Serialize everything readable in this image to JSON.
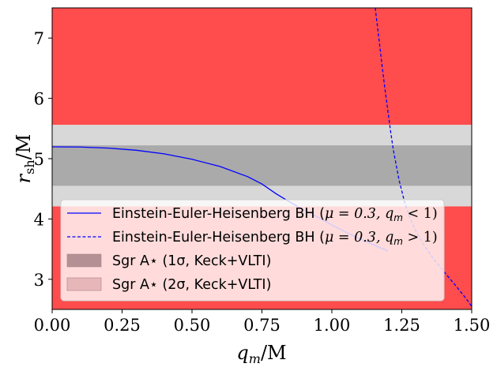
{
  "chart_data": {
    "type": "line",
    "xlabel": "q_m/M",
    "ylabel": "r_sh/M",
    "xlim": [
      0.0,
      1.5
    ],
    "ylim": [
      2.5,
      7.5
    ],
    "x_ticks": [
      "0.00",
      "0.25",
      "0.50",
      "0.75",
      "1.00",
      "1.25",
      "1.50"
    ],
    "y_ticks": [
      "3",
      "4",
      "5",
      "6",
      "7"
    ],
    "grid": false,
    "legend_position": "lower-left",
    "bands": [
      {
        "name": "excluded-low",
        "ymin": 2.5,
        "ymax": 4.21,
        "color": "#ff4c4c"
      },
      {
        "name": "excluded-high",
        "ymin": 5.56,
        "ymax": 7.5,
        "color": "#ff4c4c"
      },
      {
        "name": "Sgr A⋆ (2σ, Keck+VLTI)",
        "ymin": 4.21,
        "ymax": 5.56,
        "color": "#d8d8d8"
      },
      {
        "name": "Sgr A⋆ (1σ, Keck+VLTI)",
        "ymin": 4.55,
        "ymax": 5.22,
        "color": "#aaaaaa"
      }
    ],
    "series": [
      {
        "name": "Einstein-Euler-Heisenberg BH (μ = 0.3, q_m < 1)",
        "style": "solid",
        "color": "#0000ff",
        "x": [
          0.0,
          0.1,
          0.2,
          0.3,
          0.4,
          0.5,
          0.6,
          0.7,
          0.75,
          0.8,
          0.85,
          0.9,
          0.95,
          1.0,
          1.05,
          1.1,
          1.15,
          1.2
        ],
        "y": [
          5.196,
          5.193,
          5.175,
          5.14,
          5.08,
          4.99,
          4.87,
          4.7,
          4.58,
          4.42,
          4.28,
          4.15,
          4.03,
          3.9,
          3.78,
          3.67,
          3.57,
          3.47
        ]
      },
      {
        "name": "Einstein-Euler-Heisenberg BH (μ = 0.3, q_m > 1)",
        "style": "dashed",
        "color": "#0000ff",
        "x": [
          1.155,
          1.17,
          1.18,
          1.19,
          1.2,
          1.21,
          1.22,
          1.24,
          1.26,
          1.28,
          1.3,
          1.33,
          1.36,
          1.4,
          1.44,
          1.48,
          1.5
        ],
        "y": [
          7.5,
          6.92,
          6.52,
          6.15,
          5.8,
          5.45,
          5.14,
          4.65,
          4.28,
          4.0,
          3.8,
          3.56,
          3.36,
          3.13,
          2.91,
          2.68,
          2.55
        ]
      }
    ],
    "legend": [
      {
        "label_prefix": "Einstein-Euler-Heisenberg BH (",
        "label_math": "μ = 0.3, q",
        "label_sub": "m",
        "label_suffix": " < 1)"
      },
      {
        "label_prefix": "Einstein-Euler-Heisenberg BH (",
        "label_math": "μ = 0.3, q",
        "label_sub": "m",
        "label_suffix": " > 1)"
      },
      {
        "label": "Sgr A⋆ (1σ, Keck+VLTI)"
      },
      {
        "label": "Sgr A⋆ (2σ, Keck+VLTI)"
      }
    ]
  },
  "labels": {
    "xlabel_main": "q",
    "xlabel_sub": "m",
    "xlabel_tail": "/M",
    "ylabel_main": "r",
    "ylabel_sub": "sh",
    "ylabel_tail": "/M"
  }
}
